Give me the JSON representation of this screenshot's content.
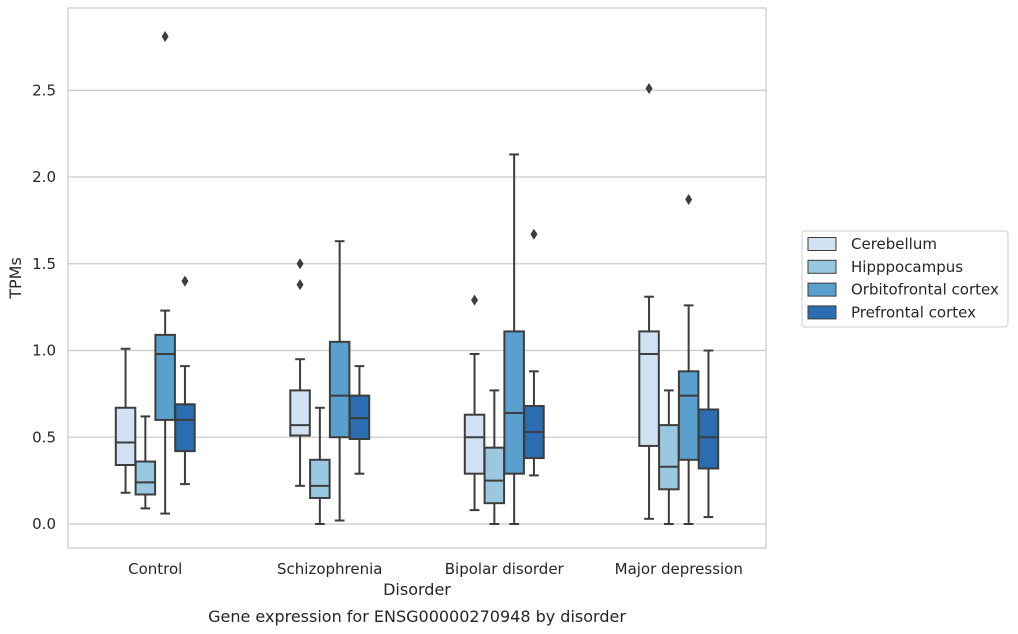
{
  "caption": "Gene expression for ENSG00000270948 by disorder",
  "chart_data": {
    "type": "box",
    "xlabel": "Disorder",
    "ylabel": "TPMs",
    "ylim": [
      -0.14,
      2.95
    ],
    "yticks": [
      "0.0",
      "0.5",
      "1.0",
      "1.5",
      "2.0",
      "2.5"
    ],
    "grid": "horizontal",
    "legend_position": "right",
    "categories": [
      "Control",
      "Schizophrenia",
      "Bipolar disorder",
      "Major depression"
    ],
    "series": [
      {
        "name": "Cerebellum",
        "color": "#d1e2f2",
        "boxes": [
          {
            "whisker_low": 0.18,
            "q1": 0.34,
            "median": 0.47,
            "q3": 0.67,
            "whisker_high": 1.01,
            "outliers": []
          },
          {
            "whisker_low": 0.22,
            "q1": 0.51,
            "median": 0.57,
            "q3": 0.77,
            "whisker_high": 0.95,
            "outliers": [
              1.38,
              1.5
            ]
          },
          {
            "whisker_low": 0.08,
            "q1": 0.29,
            "median": 0.5,
            "q3": 0.63,
            "whisker_high": 0.98,
            "outliers": [
              1.29
            ]
          },
          {
            "whisker_low": 0.03,
            "q1": 0.45,
            "median": 0.98,
            "q3": 1.11,
            "whisker_high": 1.31,
            "outliers": [
              2.51
            ]
          }
        ]
      },
      {
        "name": "Hipppocampus",
        "color": "#9ac8e0",
        "boxes": [
          {
            "whisker_low": 0.09,
            "q1": 0.17,
            "median": 0.24,
            "q3": 0.36,
            "whisker_high": 0.62,
            "outliers": []
          },
          {
            "whisker_low": 0.0,
            "q1": 0.15,
            "median": 0.22,
            "q3": 0.37,
            "whisker_high": 0.67,
            "outliers": []
          },
          {
            "whisker_low": 0.0,
            "q1": 0.12,
            "median": 0.25,
            "q3": 0.44,
            "whisker_high": 0.77,
            "outliers": []
          },
          {
            "whisker_low": 0.0,
            "q1": 0.2,
            "median": 0.33,
            "q3": 0.57,
            "whisker_high": 0.77,
            "outliers": []
          }
        ]
      },
      {
        "name": "Orbitofrontal cortex",
        "color": "#5aa0ce",
        "boxes": [
          {
            "whisker_low": 0.06,
            "q1": 0.6,
            "median": 0.98,
            "q3": 1.09,
            "whisker_high": 1.23,
            "outliers": [
              2.81
            ]
          },
          {
            "whisker_low": 0.02,
            "q1": 0.5,
            "median": 0.74,
            "q3": 1.05,
            "whisker_high": 1.63,
            "outliers": []
          },
          {
            "whisker_low": 0.0,
            "q1": 0.29,
            "median": 0.64,
            "q3": 1.11,
            "whisker_high": 2.13,
            "outliers": []
          },
          {
            "whisker_low": 0.0,
            "q1": 0.37,
            "median": 0.74,
            "q3": 0.88,
            "whisker_high": 1.26,
            "outliers": [
              1.87
            ]
          }
        ]
      },
      {
        "name": "Prefrontal cortex",
        "color": "#2a6db0",
        "boxes": [
          {
            "whisker_low": 0.23,
            "q1": 0.42,
            "median": 0.6,
            "q3": 0.69,
            "whisker_high": 0.91,
            "outliers": [
              1.4
            ]
          },
          {
            "whisker_low": 0.29,
            "q1": 0.49,
            "median": 0.61,
            "q3": 0.74,
            "whisker_high": 0.91,
            "outliers": []
          },
          {
            "whisker_low": 0.28,
            "q1": 0.38,
            "median": 0.53,
            "q3": 0.68,
            "whisker_high": 0.88,
            "outliers": [
              1.67
            ]
          },
          {
            "whisker_low": 0.04,
            "q1": 0.32,
            "median": 0.5,
            "q3": 0.66,
            "whisker_high": 1.0,
            "outliers": []
          }
        ]
      }
    ]
  }
}
